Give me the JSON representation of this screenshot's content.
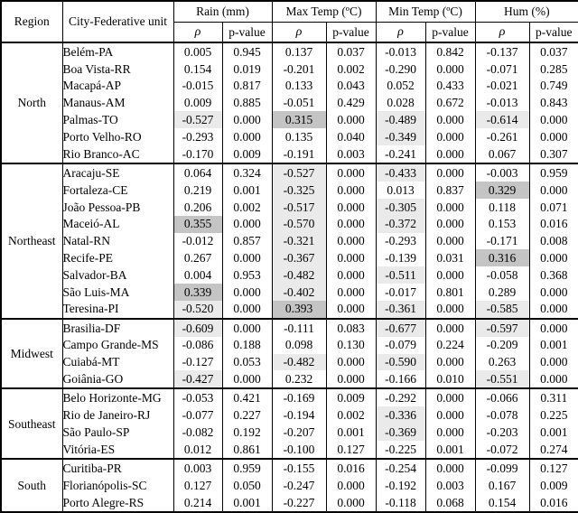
{
  "header": {
    "region": "Region",
    "city": "City-Federative unit",
    "groups": [
      "Rain (mm)",
      "Max Temp (ºC)",
      "Min Temp (ºC)",
      "Hum (%)"
    ],
    "rho": "ρ",
    "p_value": "p-value"
  },
  "shading": {
    "threshold": 0.3,
    "negative_color": "#eaeaea",
    "positive_color": "#c4c4c4"
  },
  "columns_order": [
    "rain_rho",
    "rain_p",
    "max_temp_rho",
    "max_temp_p",
    "min_temp_rho",
    "min_temp_p",
    "hum_rho",
    "hum_p"
  ],
  "regions": [
    {
      "name": "North",
      "rows": [
        {
          "city": "Belém-PA",
          "values": [
            "0.005",
            "0.945",
            "0.137",
            "0.037",
            "-0.013",
            "0.842",
            "-0.137",
            "0.037"
          ]
        },
        {
          "city": "Boa Vista-RR",
          "values": [
            "0.154",
            "0.019",
            "-0.201",
            "0.002",
            "-0.290",
            "0.000",
            "-0.071",
            "0.285"
          ]
        },
        {
          "city": "Macapá-AP",
          "values": [
            "-0.015",
            "0.817",
            "0.133",
            "0.043",
            "0.052",
            "0.433",
            "-0.021",
            "0.749"
          ]
        },
        {
          "city": "Manaus-AM",
          "values": [
            "0.009",
            "0.885",
            "-0.051",
            "0.429",
            "0.028",
            "0.672",
            "-0.013",
            "0.843"
          ]
        },
        {
          "city": "Palmas-TO",
          "values": [
            "-0.527",
            "0.000",
            "0.315",
            "0.000",
            "-0.489",
            "0.000",
            "-0.614",
            "0.000"
          ]
        },
        {
          "city": "Porto Velho-RO",
          "values": [
            "-0.293",
            "0.000",
            "0.135",
            "0.040",
            "-0.349",
            "0.000",
            "-0.261",
            "0.000"
          ]
        },
        {
          "city": "Rio Branco-AC",
          "values": [
            "-0.170",
            "0.009",
            "-0.191",
            "0.003",
            "-0.241",
            "0.000",
            "0.067",
            "0.307"
          ]
        }
      ]
    },
    {
      "name": "Northeast",
      "rows": [
        {
          "city": "Aracaju-SE",
          "values": [
            "0.064",
            "0.324",
            "-0.527",
            "0.000",
            "-0.433",
            "0.000",
            "-0.003",
            "0.959"
          ]
        },
        {
          "city": "Fortaleza-CE",
          "values": [
            "0.219",
            "0.001",
            "-0.325",
            "0.000",
            "0.013",
            "0.837",
            "0.329",
            "0.000"
          ]
        },
        {
          "city": "João Pessoa-PB",
          "values": [
            "0.206",
            "0.002",
            "-0.517",
            "0.000",
            "-0.305",
            "0.000",
            "0.118",
            "0.071"
          ]
        },
        {
          "city": "Maceió-AL",
          "values": [
            "0.355",
            "0.000",
            "-0.570",
            "0.000",
            "-0.372",
            "0.000",
            "0.153",
            "0.016"
          ]
        },
        {
          "city": "Natal-RN",
          "values": [
            "-0.012",
            "0.857",
            "-0.321",
            "0.000",
            "-0.293",
            "0.000",
            "-0.171",
            "0.008"
          ]
        },
        {
          "city": "Recife-PE",
          "values": [
            "0.267",
            "0.000",
            "-0.367",
            "0.000",
            "-0.139",
            "0.031",
            "0.316",
            "0.000"
          ]
        },
        {
          "city": "Salvador-BA",
          "values": [
            "0.004",
            "0.953",
            "-0.482",
            "0.000",
            "-0.511",
            "0.000",
            "-0.058",
            "0.368"
          ]
        },
        {
          "city": "São Luis-MA",
          "values": [
            "0.339",
            "0.000",
            "-0.402",
            "0.000",
            "-0.017",
            "0.801",
            "0.289",
            "0.000"
          ]
        },
        {
          "city": "Teresina-PI",
          "values": [
            "-0.520",
            "0.000",
            "0.393",
            "0.000",
            "-0.361",
            "0.000",
            "-0.585",
            "0.000"
          ]
        }
      ]
    },
    {
      "name": "Midwest",
      "rows": [
        {
          "city": "Brasilia-DF",
          "values": [
            "-0.609",
            "0.000",
            "-0.111",
            "0.083",
            "-0.677",
            "0.000",
            "-0.597",
            "0.000"
          ]
        },
        {
          "city": "Campo Grande-MS",
          "values": [
            "-0.086",
            "0.188",
            "0.098",
            "0.130",
            "-0.079",
            "0.224",
            "-0.209",
            "0.001"
          ]
        },
        {
          "city": "Cuiabá-MT",
          "values": [
            "-0.127",
            "0.053",
            "-0.482",
            "0.000",
            "-0.590",
            "0.000",
            "0.263",
            "0.000"
          ]
        },
        {
          "city": "Goiânia-GO",
          "values": [
            "-0.427",
            "0.000",
            "0.232",
            "0.000",
            "-0.166",
            "0.010",
            "-0.551",
            "0.000"
          ]
        }
      ]
    },
    {
      "name": "Southeast",
      "rows": [
        {
          "city": "Belo Horizonte-MG",
          "values": [
            "-0.053",
            "0.421",
            "-0.169",
            "0.009",
            "-0.292",
            "0.000",
            "-0.066",
            "0.311"
          ]
        },
        {
          "city": "Rio de Janeiro-RJ",
          "values": [
            "-0.077",
            "0.227",
            "-0.194",
            "0.002",
            "-0.336",
            "0.000",
            "-0.078",
            "0.225"
          ]
        },
        {
          "city": "São Paulo-SP",
          "values": [
            "-0.082",
            "0.192",
            "-0.207",
            "0.001",
            "-0.369",
            "0.000",
            "-0.203",
            "0.001"
          ]
        },
        {
          "city": "Vitória-ES",
          "values": [
            "0.012",
            "0.861",
            "-0.100",
            "0.127",
            "-0.225",
            "0.001",
            "-0.072",
            "0.274"
          ]
        }
      ]
    },
    {
      "name": "South",
      "rows": [
        {
          "city": "Curitiba-PR",
          "values": [
            "0.003",
            "0.959",
            "-0.155",
            "0.016",
            "-0.254",
            "0.000",
            "-0.099",
            "0.127"
          ]
        },
        {
          "city": "Florianópolis-SC",
          "values": [
            "0.127",
            "0.050",
            "-0.247",
            "0.000",
            "-0.192",
            "0.003",
            "0.167",
            "0.009"
          ]
        },
        {
          "city": "Porto Alegre-RS",
          "values": [
            "0.214",
            "0.001",
            "-0.227",
            "0.000",
            "-0.118",
            "0.068",
            "0.154",
            "0.016"
          ]
        }
      ]
    }
  ]
}
